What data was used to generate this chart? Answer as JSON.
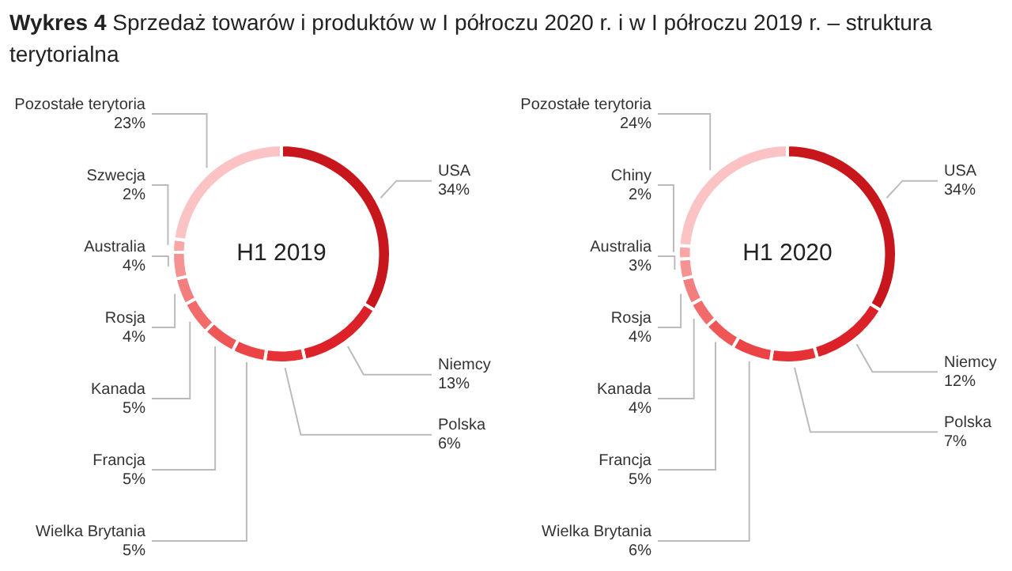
{
  "chart_data": [
    {
      "type": "donut",
      "title": "Wykres 4 Sprzedaż towarów i produktów w I półroczu 2020 r. i w I półroczu 2019 r. – struktura terytorialna",
      "annotations": [
        "H1 2019"
      ],
      "categories": [
        "USA",
        "Niemcy",
        "Polska",
        "Wielka Brytania",
        "Francja",
        "Kanada",
        "Rosja",
        "Australia",
        "Szwecja",
        "Pozostałe terytoria"
      ],
      "values": [
        34,
        13,
        6,
        5,
        5,
        5,
        4,
        4,
        2,
        23
      ],
      "value_labels": [
        "34%",
        "13%",
        "6%",
        "5%",
        "5%",
        "5%",
        "4%",
        "4%",
        "2%",
        "23%"
      ],
      "colors": [
        "#c8161d",
        "#dc2228",
        "#e63236",
        "#ec4446",
        "#ef5656",
        "#f26a6a",
        "#f47e7e",
        "#f69292",
        "#f8a6a6",
        "#fbc3c3"
      ],
      "legend": false
    },
    {
      "type": "donut",
      "annotations": [
        "H1 2020"
      ],
      "categories": [
        "USA",
        "Niemcy",
        "Polska",
        "Wielka Brytania",
        "Francja",
        "Kanada",
        "Rosja",
        "Australia",
        "Chiny",
        "Pozostałe terytoria"
      ],
      "values": [
        34,
        12,
        7,
        6,
        5,
        4,
        4,
        3,
        2,
        24
      ],
      "value_labels": [
        "34%",
        "12%",
        "7%",
        "6%",
        "5%",
        "4%",
        "4%",
        "3%",
        "2%",
        "24%"
      ],
      "colors": [
        "#c8161d",
        "#dc2228",
        "#e63236",
        "#ec4446",
        "#ef5656",
        "#f26a6a",
        "#f47e7e",
        "#f69292",
        "#f8a6a6",
        "#fbc3c3"
      ],
      "legend": false
    }
  ]
}
